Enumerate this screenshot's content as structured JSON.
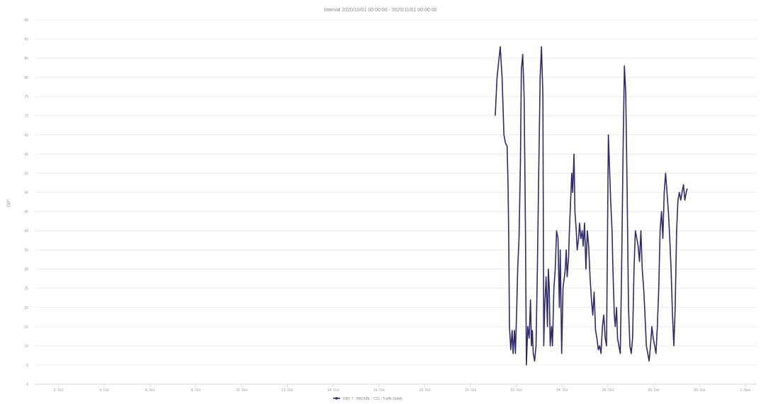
{
  "chart_data": {
    "type": "line",
    "title": "",
    "subtitle": "Interval 2020/10/01 00:00:00 - 2020/11/01 00:00:00",
    "xlabel": "",
    "ylabel": "GB*",
    "ylim": [
      0,
      95
    ],
    "yticks": [
      0,
      5,
      10,
      15,
      20,
      25,
      30,
      35,
      40,
      45,
      50,
      55,
      60,
      65,
      70,
      75,
      80,
      85,
      90,
      95
    ],
    "xlim": [
      0,
      31.5
    ],
    "xticks": [
      {
        "x": 1,
        "label": "2. Oct"
      },
      {
        "x": 3,
        "label": "4. Oct"
      },
      {
        "x": 5,
        "label": "6. Oct"
      },
      {
        "x": 7,
        "label": "8. Oct"
      },
      {
        "x": 9,
        "label": "10. Oct"
      },
      {
        "x": 11,
        "label": "12. Oct"
      },
      {
        "x": 13,
        "label": "14. Oct"
      },
      {
        "x": 15,
        "label": "16. Oct"
      },
      {
        "x": 17,
        "label": "18. Oct"
      },
      {
        "x": 19,
        "label": "20. Oct"
      },
      {
        "x": 21,
        "label": "22. Oct"
      },
      {
        "x": 23,
        "label": "24. Oct"
      },
      {
        "x": 25,
        "label": "26. Oct"
      },
      {
        "x": 27,
        "label": "28. Oct"
      },
      {
        "x": 29,
        "label": "30. Oct"
      },
      {
        "x": 31,
        "label": "1. Nov"
      }
    ],
    "grid": true,
    "legend_position": "bottom-center",
    "series": [
      {
        "name": "DRV 7 - BACKBL - CCI - Traffic (total)",
        "color": "#2e2a6e",
        "points": [
          [
            20.08,
            70
          ],
          [
            20.16,
            80
          ],
          [
            20.3,
            88
          ],
          [
            20.38,
            80
          ],
          [
            20.46,
            65
          ],
          [
            20.52,
            63
          ],
          [
            20.6,
            62
          ],
          [
            20.64,
            52
          ],
          [
            20.67,
            38
          ],
          [
            20.7,
            15
          ],
          [
            20.76,
            9
          ],
          [
            20.82,
            14
          ],
          [
            20.86,
            8
          ],
          [
            20.92,
            14
          ],
          [
            20.96,
            8
          ],
          [
            21.02,
            20
          ],
          [
            21.06,
            30
          ],
          [
            21.12,
            38
          ],
          [
            21.18,
            58
          ],
          [
            21.22,
            82
          ],
          [
            21.28,
            86
          ],
          [
            21.34,
            75
          ],
          [
            21.4,
            40
          ],
          [
            21.44,
            5
          ],
          [
            21.5,
            15
          ],
          [
            21.56,
            12
          ],
          [
            21.62,
            22
          ],
          [
            21.66,
            10
          ],
          [
            21.7,
            14
          ],
          [
            21.74,
            8
          ],
          [
            21.8,
            6
          ],
          [
            21.86,
            10
          ],
          [
            21.92,
            30
          ],
          [
            21.98,
            55
          ],
          [
            22.04,
            80
          ],
          [
            22.1,
            88
          ],
          [
            22.16,
            75
          ],
          [
            22.2,
            10
          ],
          [
            22.24,
            20
          ],
          [
            22.3,
            28
          ],
          [
            22.36,
            15
          ],
          [
            22.4,
            30
          ],
          [
            22.44,
            25
          ],
          [
            22.48,
            10
          ],
          [
            22.54,
            15
          ],
          [
            22.58,
            10
          ],
          [
            22.64,
            25
          ],
          [
            22.7,
            30
          ],
          [
            22.76,
            40
          ],
          [
            22.82,
            38
          ],
          [
            22.88,
            20
          ],
          [
            22.92,
            35
          ],
          [
            22.98,
            8
          ],
          [
            23.04,
            25
          ],
          [
            23.1,
            28
          ],
          [
            23.14,
            30
          ],
          [
            23.18,
            35
          ],
          [
            23.22,
            28
          ],
          [
            23.28,
            33
          ],
          [
            23.32,
            40
          ],
          [
            23.36,
            46
          ],
          [
            23.42,
            55
          ],
          [
            23.46,
            50
          ],
          [
            23.52,
            60
          ],
          [
            23.56,
            45
          ],
          [
            23.62,
            40
          ],
          [
            23.66,
            35
          ],
          [
            23.72,
            38
          ],
          [
            23.76,
            42
          ],
          [
            23.82,
            38
          ],
          [
            23.88,
            40
          ],
          [
            23.92,
            36
          ],
          [
            23.98,
            42
          ],
          [
            24.04,
            30
          ],
          [
            24.1,
            40
          ],
          [
            24.16,
            36
          ],
          [
            24.22,
            28
          ],
          [
            24.28,
            22
          ],
          [
            24.34,
            18
          ],
          [
            24.4,
            24
          ],
          [
            24.46,
            14
          ],
          [
            24.52,
            12
          ],
          [
            24.58,
            9
          ],
          [
            24.64,
            10
          ],
          [
            24.7,
            8
          ],
          [
            24.76,
            15
          ],
          [
            24.82,
            18
          ],
          [
            24.88,
            12
          ],
          [
            24.94,
            10
          ],
          [
            25.02,
            65
          ],
          [
            25.08,
            55
          ],
          [
            25.12,
            48
          ],
          [
            25.18,
            40
          ],
          [
            25.22,
            30
          ],
          [
            25.28,
            18
          ],
          [
            25.32,
            15
          ],
          [
            25.38,
            20
          ],
          [
            25.42,
            12
          ],
          [
            25.48,
            10
          ],
          [
            25.54,
            8
          ],
          [
            25.6,
            30
          ],
          [
            25.66,
            60
          ],
          [
            25.72,
            83
          ],
          [
            25.78,
            76
          ],
          [
            25.84,
            50
          ],
          [
            25.9,
            20
          ],
          [
            25.96,
            10
          ],
          [
            26.02,
            8
          ],
          [
            26.08,
            12
          ],
          [
            26.14,
            30
          ],
          [
            26.2,
            40
          ],
          [
            26.26,
            38
          ],
          [
            26.32,
            36
          ],
          [
            26.38,
            32
          ],
          [
            26.44,
            40
          ],
          [
            26.5,
            30
          ],
          [
            26.56,
            25
          ],
          [
            26.62,
            18
          ],
          [
            26.68,
            10
          ],
          [
            26.74,
            8
          ],
          [
            26.8,
            6
          ],
          [
            26.86,
            10
          ],
          [
            26.92,
            15
          ],
          [
            26.98,
            12
          ],
          [
            27.04,
            10
          ],
          [
            27.1,
            8
          ],
          [
            27.16,
            15
          ],
          [
            27.22,
            25
          ],
          [
            27.28,
            40
          ],
          [
            27.34,
            45
          ],
          [
            27.4,
            38
          ],
          [
            27.46,
            50
          ],
          [
            27.52,
            55
          ],
          [
            27.58,
            50
          ],
          [
            27.64,
            45
          ],
          [
            27.7,
            38
          ],
          [
            27.76,
            30
          ],
          [
            27.82,
            18
          ],
          [
            27.88,
            10
          ],
          [
            27.94,
            20
          ],
          [
            28.0,
            40
          ],
          [
            28.06,
            48
          ],
          [
            28.12,
            50
          ],
          [
            28.18,
            48
          ],
          [
            28.24,
            50
          ],
          [
            28.3,
            52
          ],
          [
            28.36,
            48
          ],
          [
            28.42,
            50
          ],
          [
            28.46,
            51
          ]
        ]
      }
    ]
  }
}
